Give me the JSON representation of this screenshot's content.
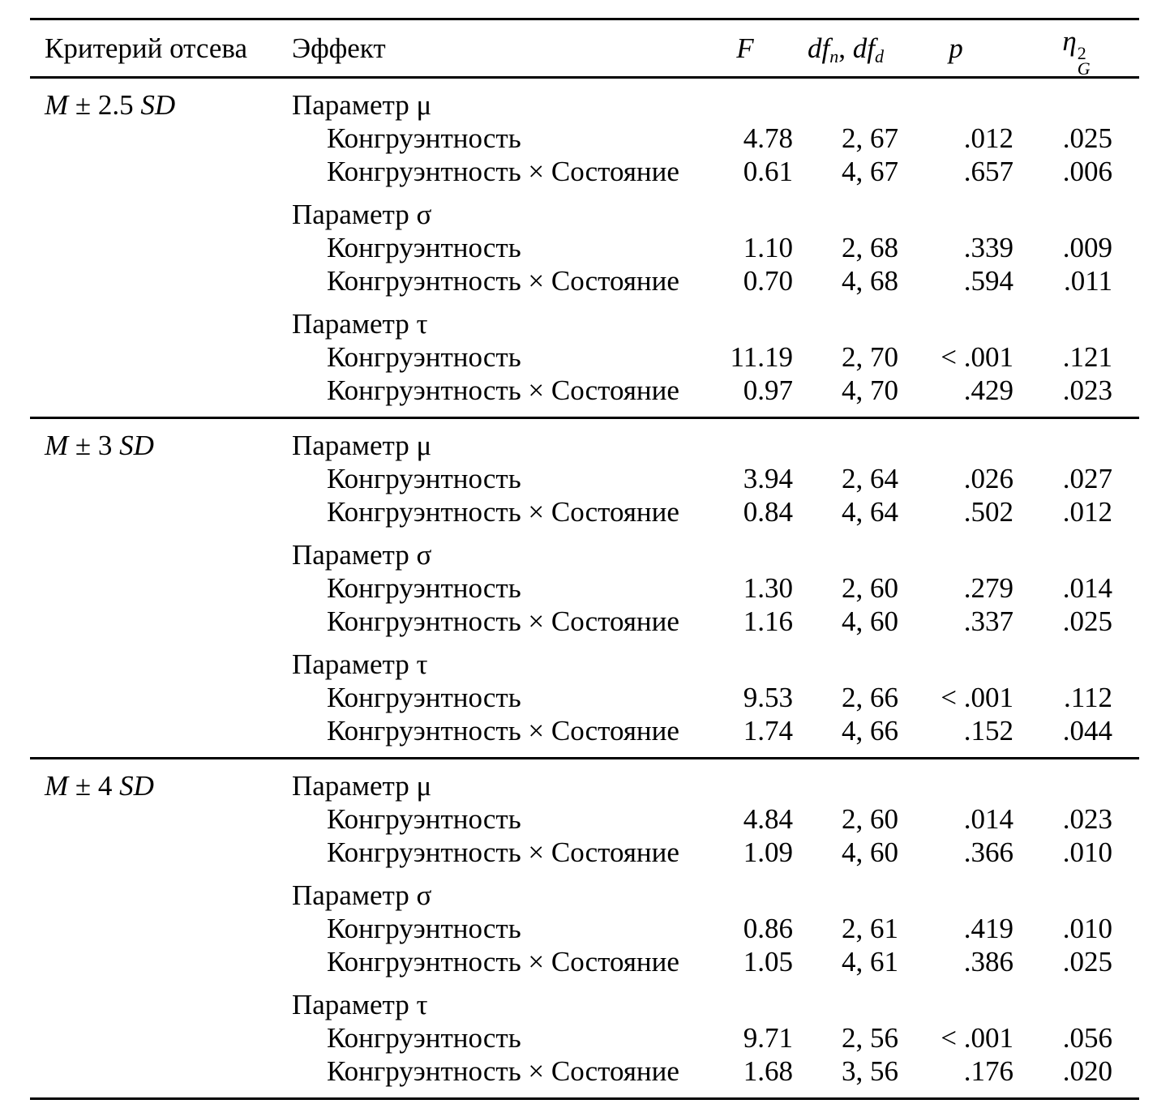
{
  "colors": {
    "background": "#ffffff",
    "text": "#000000",
    "rule": "#000000"
  },
  "header": {
    "criterion": "Критерий отсева",
    "effect": "Эффект",
    "f": "F",
    "df_base_n": "df",
    "df_sub_n": "n",
    "df_sep": ", ",
    "df_base_d": "df",
    "df_sub_d": "d",
    "p": "p",
    "eta_base": "η",
    "eta_sup": "2",
    "eta_sub": "G"
  },
  "sections": [
    {
      "criterion": {
        "m": "M",
        "mid": "± 2.5",
        "sd": "SD"
      },
      "groups": [
        {
          "label": "Параметр μ",
          "rows": [
            {
              "effect": "Конгруэнтность",
              "f": "4.78",
              "df": "2, 67",
              "p": ".012",
              "eta": ".025"
            },
            {
              "effect": "Конгруэнтность × Состояние",
              "f": "0.61",
              "df": "4, 67",
              "p": ".657",
              "eta": ".006"
            }
          ]
        },
        {
          "label": "Параметр σ",
          "rows": [
            {
              "effect": "Конгруэнтность",
              "f": "1.10",
              "df": "2, 68",
              "p": ".339",
              "eta": ".009"
            },
            {
              "effect": "Конгруэнтность × Состояние",
              "f": "0.70",
              "df": "4, 68",
              "p": ".594",
              "eta": ".011"
            }
          ]
        },
        {
          "label": "Параметр τ",
          "rows": [
            {
              "effect": "Конгруэнтность",
              "f": "11.19",
              "df": "2, 70",
              "p": "< .001",
              "eta": ".121"
            },
            {
              "effect": "Конгруэнтность × Состояние",
              "f": "0.97",
              "df": "4, 70",
              "p": ".429",
              "eta": ".023"
            }
          ]
        }
      ]
    },
    {
      "criterion": {
        "m": "M",
        "mid": "± 3",
        "sd": "SD"
      },
      "groups": [
        {
          "label": "Параметр μ",
          "rows": [
            {
              "effect": "Конгруэнтность",
              "f": "3.94",
              "df": "2, 64",
              "p": ".026",
              "eta": ".027"
            },
            {
              "effect": "Конгруэнтность × Состояние",
              "f": "0.84",
              "df": "4, 64",
              "p": ".502",
              "eta": ".012"
            }
          ]
        },
        {
          "label": "Параметр σ",
          "rows": [
            {
              "effect": "Конгруэнтность",
              "f": "1.30",
              "df": "2, 60",
              "p": ".279",
              "eta": ".014"
            },
            {
              "effect": "Конгруэнтность × Состояние",
              "f": "1.16",
              "df": "4, 60",
              "p": ".337",
              "eta": ".025"
            }
          ]
        },
        {
          "label": "Параметр τ",
          "rows": [
            {
              "effect": "Конгруэнтность",
              "f": "9.53",
              "df": "2, 66",
              "p": "< .001",
              "eta": ".112"
            },
            {
              "effect": "Конгруэнтность × Состояние",
              "f": "1.74",
              "df": "4, 66",
              "p": ".152",
              "eta": ".044"
            }
          ]
        }
      ]
    },
    {
      "criterion": {
        "m": "M",
        "mid": "± 4",
        "sd": "SD"
      },
      "groups": [
        {
          "label": "Параметр μ",
          "rows": [
            {
              "effect": "Конгруэнтность",
              "f": "4.84",
              "df": "2, 60",
              "p": ".014",
              "eta": ".023"
            },
            {
              "effect": "Конгруэнтность × Состояние",
              "f": "1.09",
              "df": "4, 60",
              "p": ".366",
              "eta": ".010"
            }
          ]
        },
        {
          "label": "Параметр σ",
          "rows": [
            {
              "effect": "Конгруэнтность",
              "f": "0.86",
              "df": "2, 61",
              "p": ".419",
              "eta": ".010"
            },
            {
              "effect": "Конгруэнтность × Состояние",
              "f": "1.05",
              "df": "4, 61",
              "p": ".386",
              "eta": ".025"
            }
          ]
        },
        {
          "label": "Параметр τ",
          "rows": [
            {
              "effect": "Конгруэнтность",
              "f": "9.71",
              "df": "2, 56",
              "p": "< .001",
              "eta": ".056"
            },
            {
              "effect": "Конгруэнтность × Состояние",
              "f": "1.68",
              "df": "3, 56",
              "p": ".176",
              "eta": ".020"
            }
          ]
        }
      ]
    }
  ]
}
